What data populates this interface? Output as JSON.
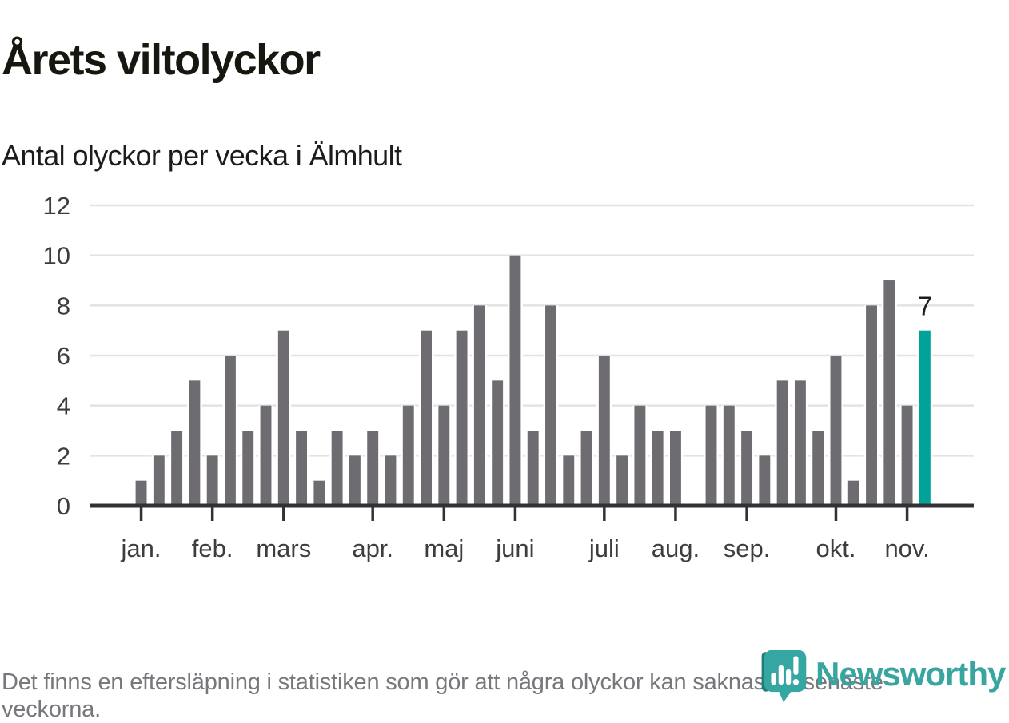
{
  "header": {
    "title": "Årets viltolyckor",
    "subtitle": "Antal olyckor per vecka i Älmhult"
  },
  "chart_data": {
    "type": "bar",
    "title": "Årets viltolyckor",
    "subtitle": "Antal olyckor per vecka i Älmhult",
    "x_unit": "vecka",
    "values": [
      1,
      2,
      3,
      5,
      2,
      6,
      3,
      4,
      7,
      3,
      1,
      3,
      2,
      3,
      2,
      4,
      7,
      4,
      7,
      8,
      5,
      10,
      3,
      8,
      2,
      3,
      6,
      2,
      4,
      3,
      3,
      0,
      4,
      4,
      3,
      2,
      5,
      5,
      3,
      6,
      1,
      8,
      9,
      4,
      7
    ],
    "x_tick_labels": [
      "jan.",
      "feb.",
      "mars",
      "apr.",
      "maj",
      "juni",
      "juli",
      "aug.",
      "sep.",
      "okt.",
      "nov."
    ],
    "x_tick_week_indices": [
      0,
      4,
      8,
      13,
      17,
      21,
      26,
      30,
      34,
      39,
      43
    ],
    "y_ticks": [
      0,
      2,
      4,
      6,
      8,
      10,
      12
    ],
    "ylim": [
      0,
      12
    ],
    "grid": true,
    "legend": "none",
    "highlight_index": 44,
    "highlight_label": "7",
    "bar_color": "#6e6c71",
    "highlight_color": "#00a29a",
    "grid_color": "#e3e3e3",
    "axis_color": "#333136",
    "tick_label_color": "#3d3d3d",
    "annotation_color": "#1d1d1d"
  },
  "footer": {
    "note": "Det finns en eftersläpning i statistiken som gör att några olyckor kan saknas de senaste veckorna."
  },
  "logo": {
    "name": "Newsworthy",
    "icon": "newsworthy-speech-bubble-chart-icon",
    "colors": {
      "main": "#35a6a1",
      "dark": "#1f7d79",
      "text": "#38a5a0"
    }
  }
}
